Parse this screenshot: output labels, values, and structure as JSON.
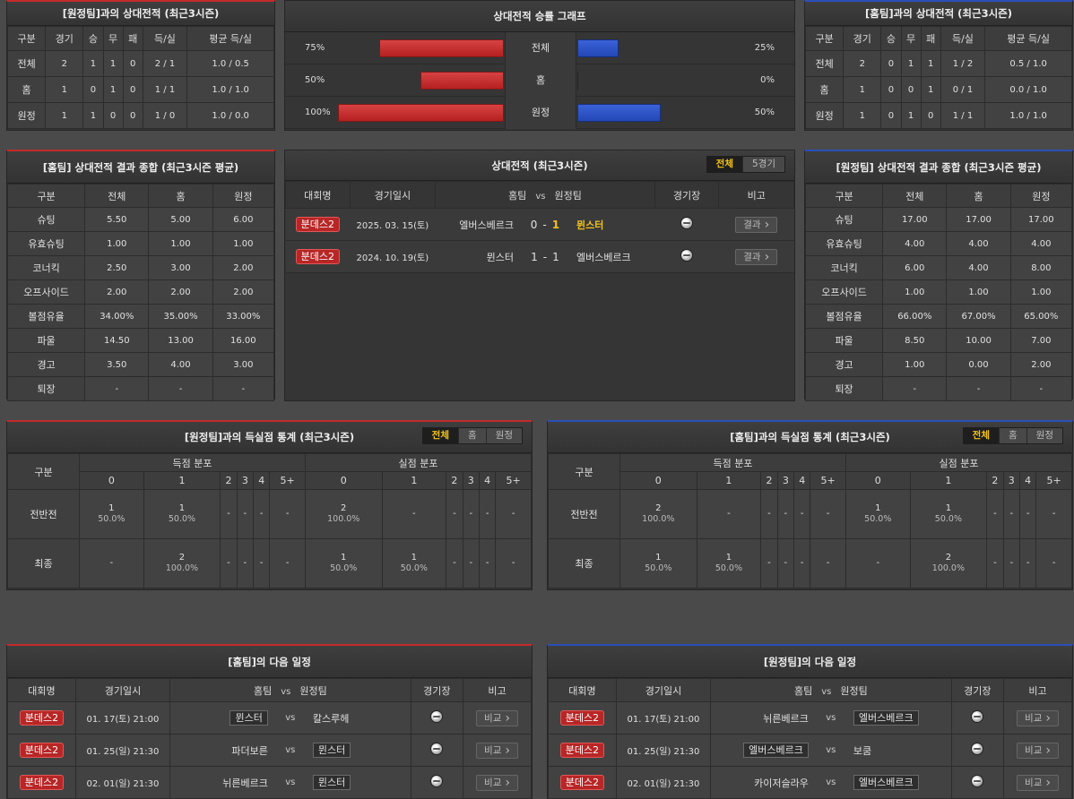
{
  "h2h_away": {
    "title": "[원정팀]과의 상대전적 (최근3시즌)",
    "headers": [
      "구분",
      "경기",
      "승",
      "무",
      "패",
      "득/실",
      "평균 득/실"
    ],
    "rows": [
      [
        "전체",
        "2",
        "1",
        "1",
        "0",
        "2 / 1",
        "1.0 / 0.5"
      ],
      [
        "홈",
        "1",
        "0",
        "1",
        "0",
        "1 / 1",
        "1.0 / 1.0"
      ],
      [
        "원정",
        "1",
        "1",
        "0",
        "0",
        "1 / 0",
        "1.0 / 0.0"
      ]
    ]
  },
  "win_graph": {
    "title": "상대전적 승률 그래프",
    "rows": [
      {
        "label": "전체",
        "left_pct": "75%",
        "right_pct": "25%",
        "left": 0.75,
        "right": 0.25
      },
      {
        "label": "홈",
        "left_pct": "50%",
        "right_pct": "0%",
        "left": 0.5,
        "right": 0
      },
      {
        "label": "원정",
        "left_pct": "100%",
        "right_pct": "50%",
        "left": 1.0,
        "right": 0.5
      }
    ]
  },
  "h2h_home": {
    "title": "[홈팀]과의 상대전적 (최근3시즌)",
    "headers": [
      "구분",
      "경기",
      "승",
      "무",
      "패",
      "득/실",
      "평균 득/실"
    ],
    "rows": [
      [
        "전체",
        "2",
        "0",
        "1",
        "1",
        "1 / 2",
        "0.5 / 1.0"
      ],
      [
        "홈",
        "1",
        "0",
        "0",
        "1",
        "0 / 1",
        "0.0 / 1.0"
      ],
      [
        "원정",
        "1",
        "0",
        "1",
        "0",
        "1 / 1",
        "1.0 / 1.0"
      ]
    ]
  },
  "summary_home": {
    "title": "[홈팀] 상대전적 결과 종합 (최근3시즌 평균)",
    "headers": [
      "구분",
      "전체",
      "홈",
      "원정"
    ],
    "rows": [
      [
        "슈팅",
        "5.50",
        "5.00",
        "6.00"
      ],
      [
        "유효슈팅",
        "1.00",
        "1.00",
        "1.00"
      ],
      [
        "코너킥",
        "2.50",
        "3.00",
        "2.00"
      ],
      [
        "오프사이드",
        "2.00",
        "2.00",
        "2.00"
      ],
      [
        "볼점유율",
        "34.00%",
        "35.00%",
        "33.00%"
      ],
      [
        "파울",
        "14.50",
        "13.00",
        "16.00"
      ],
      [
        "경고",
        "3.50",
        "4.00",
        "3.00"
      ],
      [
        "퇴장",
        "-",
        "-",
        "-"
      ]
    ]
  },
  "h2h_matches": {
    "title": "상대전적 (최근3시즌)",
    "tabs": [
      "전체",
      "5경기"
    ],
    "headers": {
      "league": "대회명",
      "date": "경기일시",
      "home": "홈팀",
      "vs": "vs",
      "away": "원정팀",
      "venue": "경기장",
      "note": "비고"
    },
    "rows": [
      {
        "league": "분데스2",
        "date": "2025. 03. 15(토)",
        "home": "엘버스베르크",
        "hs": "0",
        "sep": "-",
        "as": "1",
        "away": "뮌스터",
        "btn": "결과"
      },
      {
        "league": "분데스2",
        "date": "2024. 10. 19(토)",
        "home": "뮌스터",
        "hs": "1",
        "sep": "-",
        "as": "1",
        "away": "엘버스베르크",
        "btn": "결과"
      }
    ]
  },
  "summary_away": {
    "title": "[원정팀] 상대전적 결과 종합 (최근3시즌 평균)",
    "headers": [
      "구분",
      "전체",
      "홈",
      "원정"
    ],
    "rows": [
      [
        "슈팅",
        "17.00",
        "17.00",
        "17.00"
      ],
      [
        "유효슈팅",
        "4.00",
        "4.00",
        "4.00"
      ],
      [
        "코너킥",
        "6.00",
        "4.00",
        "8.00"
      ],
      [
        "오프사이드",
        "1.00",
        "1.00",
        "1.00"
      ],
      [
        "볼점유율",
        "66.00%",
        "67.00%",
        "65.00%"
      ],
      [
        "파울",
        "8.50",
        "10.00",
        "7.00"
      ],
      [
        "경고",
        "1.00",
        "0.00",
        "2.00"
      ],
      [
        "퇴장",
        "-",
        "-",
        "-"
      ]
    ]
  },
  "goals_left": {
    "title": "[원정팀]과의 득실점 통계 (최근3시즌)",
    "tabs": [
      "전체",
      "홈",
      "원정"
    ],
    "col_head": "구분",
    "group_scored": "득점 분포",
    "group_conceded": "실점 분포",
    "buckets": [
      "0",
      "1",
      "2",
      "3",
      "4",
      "5+"
    ],
    "rows": [
      {
        "label": "전반전",
        "cells": [
          [
            "1",
            "50.0%"
          ],
          [
            "1",
            "50.0%"
          ],
          [
            "-",
            ""
          ],
          [
            "-",
            ""
          ],
          [
            "-",
            ""
          ],
          [
            "-",
            ""
          ],
          [
            "2",
            "100.0%"
          ],
          [
            "-",
            ""
          ],
          [
            "-",
            ""
          ],
          [
            "-",
            ""
          ],
          [
            "-",
            ""
          ],
          [
            "-",
            ""
          ]
        ]
      },
      {
        "label": "최종",
        "cells": [
          [
            "-",
            ""
          ],
          [
            "2",
            "100.0%"
          ],
          [
            "-",
            ""
          ],
          [
            "-",
            ""
          ],
          [
            "-",
            ""
          ],
          [
            "-",
            ""
          ],
          [
            "1",
            "50.0%"
          ],
          [
            "1",
            "50.0%"
          ],
          [
            "-",
            ""
          ],
          [
            "-",
            ""
          ],
          [
            "-",
            ""
          ],
          [
            "-",
            ""
          ]
        ]
      }
    ]
  },
  "goals_right": {
    "title": "[홈팀]과의 득실점 통계 (최근3시즌)",
    "tabs": [
      "전체",
      "홈",
      "원정"
    ],
    "col_head": "구분",
    "group_scored": "득점 분포",
    "group_conceded": "실점 분포",
    "buckets": [
      "0",
      "1",
      "2",
      "3",
      "4",
      "5+"
    ],
    "rows": [
      {
        "label": "전반전",
        "cells": [
          [
            "2",
            "100.0%"
          ],
          [
            "-",
            ""
          ],
          [
            "-",
            ""
          ],
          [
            "-",
            ""
          ],
          [
            "-",
            ""
          ],
          [
            "-",
            ""
          ],
          [
            "1",
            "50.0%"
          ],
          [
            "1",
            "50.0%"
          ],
          [
            "-",
            ""
          ],
          [
            "-",
            ""
          ],
          [
            "-",
            ""
          ],
          [
            "-",
            ""
          ]
        ]
      },
      {
        "label": "최종",
        "cells": [
          [
            "1",
            "50.0%"
          ],
          [
            "1",
            "50.0%"
          ],
          [
            "-",
            ""
          ],
          [
            "-",
            ""
          ],
          [
            "-",
            ""
          ],
          [
            "-",
            ""
          ],
          [
            "-",
            ""
          ],
          [
            "2",
            "100.0%"
          ],
          [
            "-",
            ""
          ],
          [
            "-",
            ""
          ],
          [
            "-",
            ""
          ],
          [
            "-",
            ""
          ]
        ]
      }
    ]
  },
  "next_home": {
    "title": "[홈팀]의 다음 일정",
    "headers": {
      "league": "대회명",
      "date": "경기일시",
      "home": "홈팀",
      "vs": "vs",
      "away": "원정팀",
      "venue": "경기장",
      "note": "비고"
    },
    "rows": [
      {
        "league": "분데스2",
        "date": "01. 17(토) 21:00",
        "home": "뮌스터",
        "vs": "vs",
        "away": "칼스루헤",
        "boxed": "home",
        "btn": "비교"
      },
      {
        "league": "분데스2",
        "date": "01. 25(일) 21:30",
        "home": "파더보른",
        "vs": "vs",
        "away": "뮌스터",
        "boxed": "away",
        "btn": "비교"
      },
      {
        "league": "분데스2",
        "date": "02. 01(일) 21:30",
        "home": "뉘른베르크",
        "vs": "vs",
        "away": "뮌스터",
        "boxed": "away",
        "btn": "비교"
      }
    ]
  },
  "next_away": {
    "title": "[원정팀]의 다음 일정",
    "headers": {
      "league": "대회명",
      "date": "경기일시",
      "home": "홈팀",
      "vs": "vs",
      "away": "원정팀",
      "venue": "경기장",
      "note": "비고"
    },
    "rows": [
      {
        "league": "분데스2",
        "date": "01. 17(토) 21:00",
        "home": "뉘른베르크",
        "vs": "vs",
        "away": "엘버스베르크",
        "boxed": "away",
        "btn": "비교"
      },
      {
        "league": "분데스2",
        "date": "01. 25(일) 21:30",
        "home": "엘버스베르크",
        "vs": "vs",
        "away": "보쿰",
        "boxed": "home",
        "btn": "비교"
      },
      {
        "league": "분데스2",
        "date": "02. 01(일) 21:30",
        "home": "카이저슬라우",
        "vs": "vs",
        "away": "엘버스베르크",
        "boxed": "away",
        "btn": "비교"
      }
    ]
  },
  "colors": {
    "home_bar": "#c32a2a",
    "away_bar": "#2a4fb8",
    "accent": "#f2c21a"
  },
  "icons": {
    "venue": "soccer-ball-icon",
    "chevron": "chevron-right-icon"
  }
}
